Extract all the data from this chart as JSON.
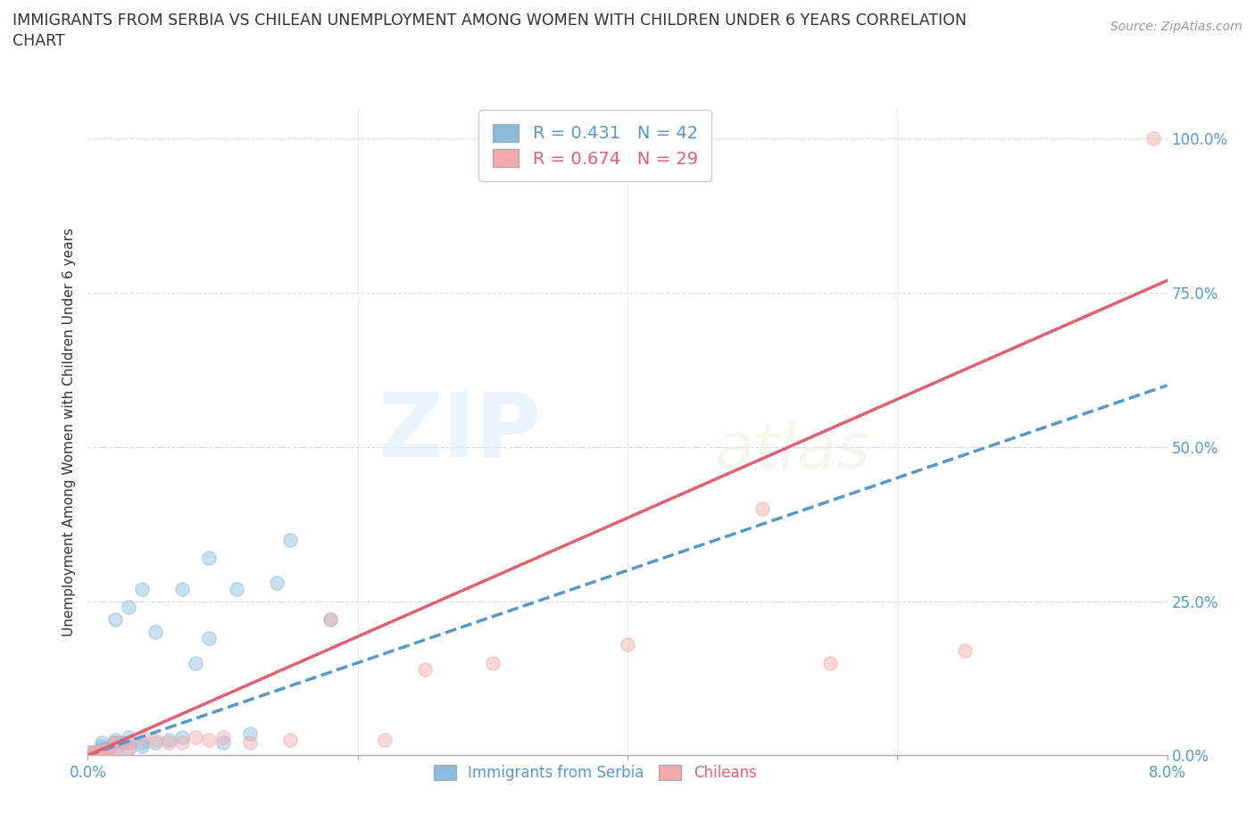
{
  "title_line1": "IMMIGRANTS FROM SERBIA VS CHILEAN UNEMPLOYMENT AMONG WOMEN WITH CHILDREN UNDER 6 YEARS CORRELATION",
  "title_line2": "CHART",
  "source": "Source: ZipAtlas.com",
  "ylabel": "Unemployment Among Women with Children Under 6 years",
  "legend_label1": "Immigrants from Serbia",
  "legend_label2": "Chileans",
  "R1": 0.431,
  "N1": 42,
  "R2": 0.674,
  "N2": 29,
  "color_serbia": "#88bbdd",
  "color_chileans": "#f4aaaa",
  "color_serbia_line": "#5599cc",
  "color_chileans_line": "#e06070",
  "serbia_x": [
    0.0002,
    0.0003,
    0.0004,
    0.0005,
    0.0006,
    0.0007,
    0.0008,
    0.0009,
    0.001,
    0.001,
    0.001,
    0.001,
    0.0012,
    0.0013,
    0.0014,
    0.0015,
    0.002,
    0.002,
    0.002,
    0.0025,
    0.003,
    0.003,
    0.003,
    0.004,
    0.004,
    0.005,
    0.006,
    0.007,
    0.008,
    0.009,
    0.01,
    0.012,
    0.015,
    0.018,
    0.002,
    0.003,
    0.004,
    0.005,
    0.007,
    0.009,
    0.011,
    0.014
  ],
  "serbia_y": [
    0.005,
    0.005,
    0.005,
    0.005,
    0.005,
    0.005,
    0.005,
    0.005,
    0.005,
    0.01,
    0.015,
    0.02,
    0.005,
    0.01,
    0.01,
    0.01,
    0.005,
    0.02,
    0.025,
    0.02,
    0.01,
    0.02,
    0.03,
    0.015,
    0.02,
    0.02,
    0.025,
    0.03,
    0.15,
    0.19,
    0.02,
    0.035,
    0.35,
    0.22,
    0.22,
    0.24,
    0.27,
    0.2,
    0.27,
    0.32,
    0.27,
    0.28
  ],
  "chilean_x": [
    0.0002,
    0.0004,
    0.0006,
    0.0008,
    0.001,
    0.0012,
    0.0015,
    0.002,
    0.002,
    0.003,
    0.003,
    0.004,
    0.005,
    0.006,
    0.007,
    0.008,
    0.009,
    0.01,
    0.012,
    0.015,
    0.018,
    0.022,
    0.025,
    0.03,
    0.04,
    0.05,
    0.055,
    0.065,
    0.079
  ],
  "chilean_y": [
    0.005,
    0.005,
    0.005,
    0.005,
    0.005,
    0.005,
    0.01,
    0.01,
    0.02,
    0.01,
    0.02,
    0.03,
    0.025,
    0.02,
    0.02,
    0.03,
    0.025,
    0.03,
    0.02,
    0.025,
    0.22,
    0.025,
    0.14,
    0.15,
    0.18,
    0.4,
    0.15,
    0.17,
    1.0
  ],
  "serbia_line_x0": 0.0,
  "serbia_line_y0": 0.0,
  "serbia_line_x1": 0.08,
  "serbia_line_y1": 0.6,
  "chilean_line_x0": 0.0,
  "chilean_line_y0": 0.0,
  "chilean_line_x1": 0.08,
  "chilean_line_y1": 0.77,
  "xmin": 0.0,
  "xmax": 0.08,
  "ymin": 0.0,
  "ymax": 1.05,
  "yticks": [
    0.0,
    0.25,
    0.5,
    0.75,
    1.0
  ],
  "ytick_labels": [
    "0.0%",
    "25.0%",
    "50.0%",
    "75.0%",
    "100.0%"
  ],
  "xtick_left_label": "0.0%",
  "xtick_right_label": "8.0%",
  "watermark_ZIP": "ZIP",
  "watermark_atlas": "atlas",
  "background_color": "#ffffff",
  "grid_color": "#cccccc"
}
